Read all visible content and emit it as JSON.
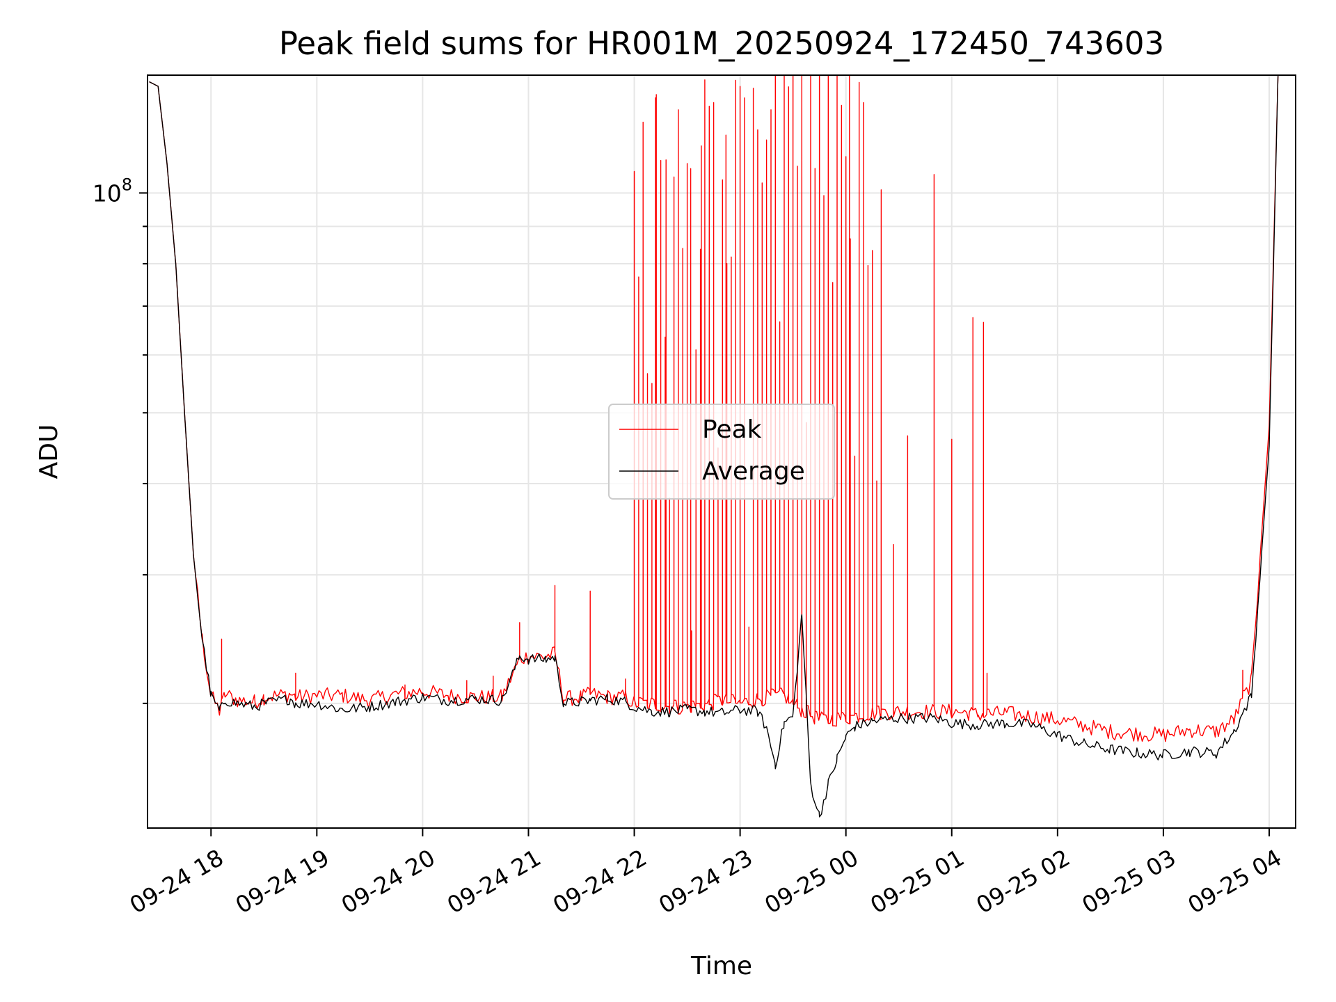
{
  "chart_data": {
    "type": "line",
    "title": "Peak field sums for HR001M_20250924_172450_743603",
    "xlabel": "Time",
    "ylabel": "ADU",
    "yscale": "log",
    "ylim": [
      13500000,
      145000000
    ],
    "xlim": [
      "2025-09-24 17:24",
      "2025-09-25 04:15"
    ],
    "grid": true,
    "legend": {
      "placement": "center"
    },
    "x_ticks": [
      "09-24 18",
      "09-24 19",
      "09-24 20",
      "09-24 21",
      "09-24 22",
      "09-24 23",
      "09-25 00",
      "09-25 01",
      "09-25 02",
      "09-25 03",
      "09-25 04"
    ],
    "y_ticks": [
      {
        "value": 100000000,
        "label_base": "10",
        "label_exp": "8"
      }
    ],
    "colors": {
      "Peak": "#ff0000",
      "Average": "#000000"
    },
    "series": [
      {
        "name": "Peak",
        "x": [
          "2025-09-24 17:25",
          "2025-09-24 17:30",
          "2025-09-24 17:35",
          "2025-09-24 17:40",
          "2025-09-24 17:45",
          "2025-09-24 17:50",
          "2025-09-24 17:55",
          "2025-09-24 18:00",
          "2025-09-24 18:05",
          "2025-09-24 18:08",
          "2025-09-24 18:15",
          "2025-09-24 18:25",
          "2025-09-24 18:30",
          "2025-09-24 18:45",
          "2025-09-24 18:48",
          "2025-09-24 19:00",
          "2025-09-24 19:15",
          "2025-09-24 19:30",
          "2025-09-24 19:45",
          "2025-09-24 20:00",
          "2025-09-24 20:15",
          "2025-09-24 20:30",
          "2025-09-24 20:45",
          "2025-09-24 20:55",
          "2025-09-24 21:00",
          "2025-09-24 21:10",
          "2025-09-24 21:15",
          "2025-09-24 21:20",
          "2025-09-24 21:30",
          "2025-09-24 21:35",
          "2025-09-24 21:45",
          "2025-09-24 21:55",
          "2025-09-24 22:00",
          "2025-09-24 22:10",
          "2025-09-24 22:20",
          "2025-09-24 22:30",
          "2025-09-24 22:40",
          "2025-09-24 22:50",
          "2025-09-24 23:00",
          "2025-09-24 23:15",
          "2025-09-24 23:25",
          "2025-09-24 23:35",
          "2025-09-24 23:45",
          "2025-09-25 00:00",
          "2025-09-25 00:15",
          "2025-09-25 00:30",
          "2025-09-25 00:50",
          "2025-09-25 01:00",
          "2025-09-25 01:10",
          "2025-09-25 01:15",
          "2025-09-25 01:30",
          "2025-09-25 02:00",
          "2025-09-25 02:30",
          "2025-09-25 03:00",
          "2025-09-25 03:15",
          "2025-09-25 03:30",
          "2025-09-25 03:40",
          "2025-09-25 03:50",
          "2025-09-25 04:00",
          "2025-09-25 04:05"
        ],
        "y": [
          142000000,
          140000000,
          110000000,
          80000000,
          50000000,
          32000000,
          24500000,
          20500000,
          19500000,
          20600000,
          20200000,
          20100000,
          20400000,
          20600000,
          20400000,
          20500000,
          20500000,
          20200000,
          20600000,
          20800000,
          20500000,
          20400000,
          20400000,
          23000000,
          23200000,
          23200000,
          23400000,
          20300000,
          20400000,
          20600000,
          20400000,
          20400000,
          20000000,
          20000000,
          19800000,
          19800000,
          19900000,
          20200000,
          20000000,
          20400000,
          20500000,
          19600000,
          19000000,
          19100000,
          19400000,
          19500000,
          19500000,
          19500000,
          19400000,
          19300000,
          19400000,
          19000000,
          18300000,
          18100000,
          18400000,
          18300000,
          19000000,
          21500000,
          48000000,
          145000000
        ],
        "spikes": [
          {
            "x": "2025-09-24 18:06",
            "y": 24500000
          },
          {
            "x": "2025-09-24 18:48",
            "y": 22000000
          },
          {
            "x": "2025-09-24 19:50",
            "y": 21200000
          },
          {
            "x": "2025-09-24 20:25",
            "y": 21500000
          },
          {
            "x": "2025-09-24 20:40",
            "y": 21800000
          },
          {
            "x": "2025-09-24 20:55",
            "y": 25800000
          },
          {
            "x": "2025-09-24 21:15",
            "y": 29000000
          },
          {
            "x": "2025-09-24 21:35",
            "y": 28500000
          },
          {
            "x": "2025-09-24 21:55",
            "y": 21600000
          },
          {
            "x": "2025-09-24 22:00",
            "y": 107000000
          },
          {
            "x": "2025-09-24 22:05",
            "y": 125000000
          },
          {
            "x": "2025-09-24 22:12",
            "y": 135000000
          },
          {
            "x": "2025-09-24 22:18",
            "y": 111000000
          },
          {
            "x": "2025-09-24 22:25",
            "y": 130000000
          },
          {
            "x": "2025-09-24 22:32",
            "y": 108000000
          },
          {
            "x": "2025-09-24 22:38",
            "y": 116000000
          },
          {
            "x": "2025-09-24 22:45",
            "y": 133000000
          },
          {
            "x": "2025-09-24 22:52",
            "y": 120000000
          },
          {
            "x": "2025-09-24 23:00",
            "y": 118000000
          },
          {
            "x": "2025-09-24 23:10",
            "y": 122000000
          },
          {
            "x": "2025-09-24 23:20",
            "y": 145000000
          },
          {
            "x": "2025-09-24 23:25",
            "y": 145000000
          },
          {
            "x": "2025-09-24 23:30",
            "y": 145000000
          },
          {
            "x": "2025-09-24 23:35",
            "y": 145000000
          },
          {
            "x": "2025-09-24 23:40",
            "y": 145000000
          },
          {
            "x": "2025-09-24 23:45",
            "y": 145000000
          },
          {
            "x": "2025-09-24 23:50",
            "y": 145000000
          },
          {
            "x": "2025-09-24 23:55",
            "y": 145000000
          },
          {
            "x": "2025-09-25 00:02",
            "y": 145000000
          },
          {
            "x": "2025-09-25 00:10",
            "y": 133000000
          },
          {
            "x": "2025-09-25 00:20",
            "y": 101000000
          },
          {
            "x": "2025-09-25 00:27",
            "y": 33000000
          },
          {
            "x": "2025-09-25 00:35",
            "y": 46500000
          },
          {
            "x": "2025-09-25 00:50",
            "y": 106000000
          },
          {
            "x": "2025-09-25 01:00",
            "y": 46000000
          },
          {
            "x": "2025-09-25 01:12",
            "y": 67500000
          },
          {
            "x": "2025-09-25 01:18",
            "y": 66500000
          },
          {
            "x": "2025-09-25 01:20",
            "y": 22000000
          },
          {
            "x": "2025-09-25 03:45",
            "y": 22200000
          }
        ]
      },
      {
        "name": "Average",
        "x": [
          "2025-09-24 17:25",
          "2025-09-24 17:30",
          "2025-09-24 17:35",
          "2025-09-24 17:40",
          "2025-09-24 17:45",
          "2025-09-24 17:50",
          "2025-09-24 17:55",
          "2025-09-24 18:00",
          "2025-09-24 18:05",
          "2025-09-24 18:08",
          "2025-09-24 18:15",
          "2025-09-24 18:25",
          "2025-09-24 18:30",
          "2025-09-24 18:45",
          "2025-09-24 18:48",
          "2025-09-24 19:00",
          "2025-09-24 19:15",
          "2025-09-24 19:30",
          "2025-09-24 19:45",
          "2025-09-24 20:00",
          "2025-09-24 20:15",
          "2025-09-24 20:30",
          "2025-09-24 20:45",
          "2025-09-24 20:55",
          "2025-09-24 21:00",
          "2025-09-24 21:10",
          "2025-09-24 21:15",
          "2025-09-24 21:20",
          "2025-09-24 21:30",
          "2025-09-24 21:35",
          "2025-09-24 21:45",
          "2025-09-24 21:55",
          "2025-09-24 22:00",
          "2025-09-24 22:10",
          "2025-09-24 22:20",
          "2025-09-24 22:30",
          "2025-09-24 22:40",
          "2025-09-24 22:50",
          "2025-09-24 23:00",
          "2025-09-24 23:10",
          "2025-09-24 23:15",
          "2025-09-24 23:20",
          "2025-09-24 23:25",
          "2025-09-24 23:30",
          "2025-09-24 23:35",
          "2025-09-24 23:40",
          "2025-09-24 23:45",
          "2025-09-24 23:50",
          "2025-09-24 23:55",
          "2025-09-25 00:00",
          "2025-09-25 00:05",
          "2025-09-25 00:15",
          "2025-09-25 00:30",
          "2025-09-25 00:50",
          "2025-09-25 01:00",
          "2025-09-25 01:15",
          "2025-09-25 01:30",
          "2025-09-25 01:45",
          "2025-09-25 02:00",
          "2025-09-25 02:15",
          "2025-09-25 02:30",
          "2025-09-25 02:45",
          "2025-09-25 03:00",
          "2025-09-25 03:15",
          "2025-09-25 03:30",
          "2025-09-25 03:40",
          "2025-09-25 03:50",
          "2025-09-25 04:00",
          "2025-09-25 04:05"
        ],
        "y": [
          142000000,
          140000000,
          110000000,
          80000000,
          50000000,
          32000000,
          24500000,
          20500000,
          19500000,
          20200000,
          20000000,
          19800000,
          20000000,
          20300000,
          20000000,
          20000000,
          19600000,
          19800000,
          20100000,
          20400000,
          20200000,
          20300000,
          20200000,
          23200000,
          23000000,
          23000000,
          23100000,
          20000000,
          20100000,
          20200000,
          20300000,
          20100000,
          19800000,
          19500000,
          19500000,
          19600000,
          19500000,
          19400000,
          19600000,
          19500000,
          18500000,
          16500000,
          18800000,
          19200000,
          26500000,
          15500000,
          14000000,
          15500000,
          16800000,
          18000000,
          18600000,
          18900000,
          19100000,
          19100000,
          18800000,
          18700000,
          18800000,
          18700000,
          18100000,
          17600000,
          17300000,
          17100000,
          17000000,
          17200000,
          17100000,
          18300000,
          20500000,
          45000000,
          145000000
        ]
      }
    ]
  }
}
